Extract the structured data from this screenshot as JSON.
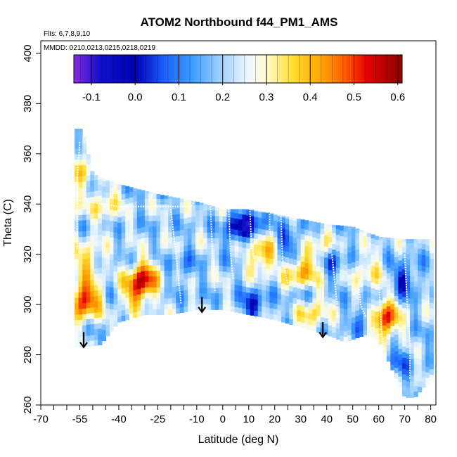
{
  "chart_data": {
    "type": "heatmap",
    "title": "ATOM2 Northbound f44_PM1_AMS",
    "flights_note": "Flts: 6,7,8,9,10",
    "dates_note": "MMDD: 0210,0213,0215,0218,0219",
    "xlabel": "Latitude (deg N)",
    "ylabel": "Theta (C)",
    "xlim": [
      -70,
      82
    ],
    "ylim": [
      260,
      405
    ],
    "x_ticks_major": [
      -70,
      -55,
      -40,
      -25,
      -10,
      0,
      10,
      20,
      30,
      40,
      50,
      60,
      70,
      80
    ],
    "x_tick_labels": [
      "-70",
      "-55",
      "-40",
      "-25",
      "-10",
      "0",
      "10",
      "20",
      "30",
      "40",
      "50",
      "60",
      "70",
      "80"
    ],
    "x_ticks_minor": [
      -65,
      -60,
      -50,
      -45,
      -35,
      -30,
      -20,
      -15,
      -5,
      5,
      15,
      25,
      35,
      45,
      55,
      65,
      75
    ],
    "y_ticks": [
      260,
      280,
      300,
      320,
      340,
      360,
      380,
      400
    ],
    "y_tick_labels": [
      "260",
      "280",
      "300",
      "320",
      "340",
      "360",
      "380",
      "400"
    ],
    "colorbar": {
      "min": -0.14,
      "max": 0.61,
      "ticks": [
        -0.1,
        0.0,
        0.1,
        0.2,
        0.3,
        0.4,
        0.5,
        0.6
      ],
      "tick_labels": [
        "-0.1",
        "0.0",
        "0.1",
        "0.2",
        "0.3",
        "0.4",
        "0.5",
        "0.6"
      ],
      "stops": [
        {
          "v": -0.14,
          "c": "#8a2be2"
        },
        {
          "v": -0.08,
          "c": "#1010c8"
        },
        {
          "v": 0.0,
          "c": "#0000b4"
        },
        {
          "v": 0.07,
          "c": "#1e64ff"
        },
        {
          "v": 0.13,
          "c": "#3c9cff"
        },
        {
          "v": 0.2,
          "c": "#a6d4ff"
        },
        {
          "v": 0.26,
          "c": "#f0f8ff"
        },
        {
          "v": 0.3,
          "c": "#fffbd0"
        },
        {
          "v": 0.36,
          "c": "#ffde30"
        },
        {
          "v": 0.43,
          "c": "#ffa000"
        },
        {
          "v": 0.48,
          "c": "#ff5a00"
        },
        {
          "v": 0.53,
          "c": "#e60000"
        },
        {
          "v": 0.61,
          "c": "#8b0000"
        }
      ]
    },
    "coverage_top": [
      [
        -57,
        370
      ],
      [
        -54,
        370
      ],
      [
        -50,
        352
      ],
      [
        -40,
        348
      ],
      [
        -25,
        344
      ],
      [
        -10,
        341
      ],
      [
        0,
        338
      ],
      [
        10,
        338
      ],
      [
        20,
        336
      ],
      [
        30,
        334
      ],
      [
        40,
        332
      ],
      [
        50,
        331
      ],
      [
        60,
        327
      ],
      [
        70,
        326
      ],
      [
        78,
        326
      ]
    ],
    "coverage_bottom": [
      [
        -57,
        283
      ],
      [
        -54,
        283
      ],
      [
        -47,
        284
      ],
      [
        -40,
        293
      ],
      [
        -30,
        296
      ],
      [
        -20,
        296
      ],
      [
        -10,
        298
      ],
      [
        0,
        298
      ],
      [
        10,
        296
      ],
      [
        20,
        294
      ],
      [
        30,
        291
      ],
      [
        40,
        288
      ],
      [
        47,
        285
      ],
      [
        55,
        288
      ],
      [
        60,
        286
      ],
      [
        67,
        270
      ],
      [
        70,
        263
      ],
      [
        74,
        263
      ],
      [
        78,
        268
      ],
      [
        80,
        270
      ]
    ],
    "hotspots": [
      {
        "lat": -53,
        "theta": 302,
        "value": 0.56
      },
      {
        "lat": -52,
        "theta": 318,
        "value": 0.36
      },
      {
        "lat": -33,
        "theta": 306,
        "value": 0.44
      },
      {
        "lat": -30,
        "theta": 311,
        "value": 0.42
      },
      {
        "lat": -62,
        "theta": 320,
        "value": 0.3
      },
      {
        "lat": -60,
        "theta": 340,
        "value": 0.34
      },
      {
        "lat": -55,
        "theta": 355,
        "value": 0.34
      },
      {
        "lat": 62,
        "theta": 294,
        "value": 0.54
      },
      {
        "lat": 30,
        "theta": 312,
        "value": 0.44
      },
      {
        "lat": 15,
        "theta": 320,
        "value": 0.42
      },
      {
        "lat": 34,
        "theta": 297,
        "value": 0.36
      },
      {
        "lat": 56,
        "theta": 313,
        "value": 0.32
      },
      {
        "lat": -45,
        "theta": 340,
        "value": 0.33
      },
      {
        "lat": 38,
        "theta": 322,
        "value": 0.34
      }
    ],
    "coldspots": [
      {
        "lat": 5,
        "theta": 330,
        "value": 0.0
      },
      {
        "lat": 12,
        "theta": 333,
        "value": 0.02
      },
      {
        "lat": 25,
        "theta": 325,
        "value": 0.05
      },
      {
        "lat": 12,
        "theta": 300,
        "value": 0.02
      },
      {
        "lat": 42,
        "theta": 318,
        "value": 0.04
      },
      {
        "lat": 70,
        "theta": 310,
        "value": 0.02
      },
      {
        "lat": 55,
        "theta": 295,
        "value": 0.06
      },
      {
        "lat": -15,
        "theta": 315,
        "value": 0.12
      },
      {
        "lat": 68,
        "theta": 278,
        "value": 0.1
      },
      {
        "lat": 30,
        "theta": 305,
        "value": 0.08
      }
    ],
    "base_value": 0.2,
    "arrows": [
      {
        "lat": -53.5,
        "theta_top": 289,
        "theta_bottom": 283
      },
      {
        "lat": -8,
        "theta_top": 303,
        "theta_bottom": 297
      },
      {
        "lat": 38.5,
        "theta_top": 293,
        "theta_bottom": 287
      }
    ],
    "track_lines": [
      [
        [
          -58,
          342
        ],
        [
          -40,
          339
        ],
        [
          -25,
          339
        ],
        [
          -12,
          339
        ],
        [
          -8,
          348
        ],
        [
          -6,
          346
        ],
        [
          0,
          345
        ],
        [
          8,
          347
        ],
        [
          15,
          345
        ],
        [
          20,
          347
        ],
        [
          24,
          344
        ]
      ],
      [
        [
          -56,
          322
        ],
        [
          -56,
          350
        ],
        [
          -55,
          365
        ]
      ],
      [
        [
          -20,
          338
        ],
        [
          -18,
          320
        ],
        [
          -16,
          300
        ]
      ],
      [
        [
          -5,
          346
        ],
        [
          -4,
          322
        ],
        [
          -3,
          305
        ]
      ],
      [
        [
          2,
          345
        ],
        [
          3,
          320
        ],
        [
          4,
          310
        ]
      ],
      [
        [
          10,
          347
        ],
        [
          11,
          325
        ],
        [
          12,
          318
        ]
      ],
      [
        [
          18,
          343
        ],
        [
          18,
          330
        ],
        [
          19,
          325
        ]
      ],
      [
        [
          22,
          345
        ],
        [
          23,
          318
        ],
        [
          25,
          308
        ]
      ],
      [
        [
          42,
          320
        ],
        [
          43,
          310
        ],
        [
          44,
          300
        ]
      ],
      [
        [
          52,
          312
        ],
        [
          53,
          300
        ],
        [
          55,
          295
        ]
      ],
      [
        [
          60,
          310
        ],
        [
          61,
          290
        ],
        [
          62,
          282
        ]
      ],
      [
        [
          70,
          320
        ],
        [
          71,
          300
        ],
        [
          72,
          285
        ],
        [
          72,
          270
        ]
      ]
    ]
  }
}
